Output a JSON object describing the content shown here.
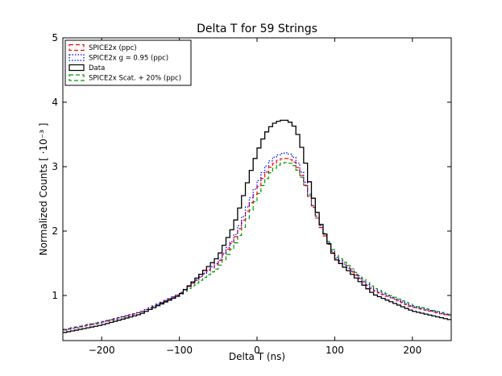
{
  "chart_data": {
    "type": "line",
    "title": "Delta T for 59 Strings",
    "xlabel": "Delta T (ns)",
    "ylabel": "Normalized Counts [ ·10⁻³ ]",
    "xlim": [
      -250,
      250
    ],
    "ylim": [
      0.3,
      5
    ],
    "xticks": [
      -200,
      -100,
      0,
      100,
      200
    ],
    "xtick_labels": [
      "−200",
      "−100",
      "0",
      "100",
      "200"
    ],
    "yticks": [
      1,
      2,
      3,
      4,
      5
    ],
    "ytick_labels": [
      "1",
      "2",
      "3",
      "4",
      "5"
    ],
    "grid": false,
    "legend_position": "top-left",
    "series": [
      {
        "name": "SPICE2x (ppc)",
        "color": "#ff0000",
        "dash": "dashed",
        "x": [
          -250,
          -200,
          -150,
          -100,
          -50,
          -30,
          -20,
          -10,
          0,
          10,
          20,
          30,
          40,
          50,
          60,
          70,
          80,
          100,
          150,
          200,
          250
        ],
        "y": [
          0.46,
          0.58,
          0.74,
          1.02,
          1.5,
          1.85,
          2.1,
          2.38,
          2.63,
          2.88,
          3.03,
          3.12,
          3.13,
          3.05,
          2.8,
          2.45,
          2.12,
          1.6,
          1.08,
          0.82,
          0.68
        ]
      },
      {
        "name": "SPICE2x g = 0.95 (ppc)",
        "color": "#0000ff",
        "dash": "dotted",
        "x": [
          -250,
          -200,
          -150,
          -100,
          -50,
          -30,
          -20,
          -10,
          0,
          10,
          20,
          30,
          40,
          50,
          60,
          70,
          80,
          100,
          150,
          200,
          250
        ],
        "y": [
          0.46,
          0.58,
          0.74,
          1.02,
          1.52,
          1.88,
          2.15,
          2.45,
          2.72,
          2.97,
          3.13,
          3.2,
          3.22,
          3.12,
          2.85,
          2.48,
          2.15,
          1.62,
          1.09,
          0.83,
          0.69
        ]
      },
      {
        "name": "Data",
        "color": "#000000",
        "dash": "solid",
        "x": [
          -250,
          -200,
          -150,
          -100,
          -50,
          -30,
          -20,
          -10,
          0,
          10,
          20,
          30,
          40,
          50,
          60,
          70,
          80,
          100,
          150,
          200,
          250
        ],
        "y": [
          0.42,
          0.54,
          0.71,
          1.0,
          1.6,
          2.08,
          2.45,
          2.85,
          3.22,
          3.5,
          3.66,
          3.72,
          3.72,
          3.6,
          3.2,
          2.62,
          2.18,
          1.58,
          1.02,
          0.76,
          0.62
        ]
      },
      {
        "name": "SPICE2x Scat. + 20% (ppc)",
        "color": "#009900",
        "dash": "dashed",
        "x": [
          -250,
          -200,
          -150,
          -100,
          -50,
          -30,
          -20,
          -10,
          0,
          10,
          20,
          30,
          40,
          50,
          60,
          70,
          80,
          100,
          150,
          200,
          250
        ],
        "y": [
          0.47,
          0.59,
          0.74,
          1.0,
          1.43,
          1.76,
          1.99,
          2.26,
          2.52,
          2.77,
          2.95,
          3.05,
          3.07,
          3.0,
          2.78,
          2.47,
          2.15,
          1.65,
          1.12,
          0.85,
          0.7
        ]
      }
    ]
  }
}
